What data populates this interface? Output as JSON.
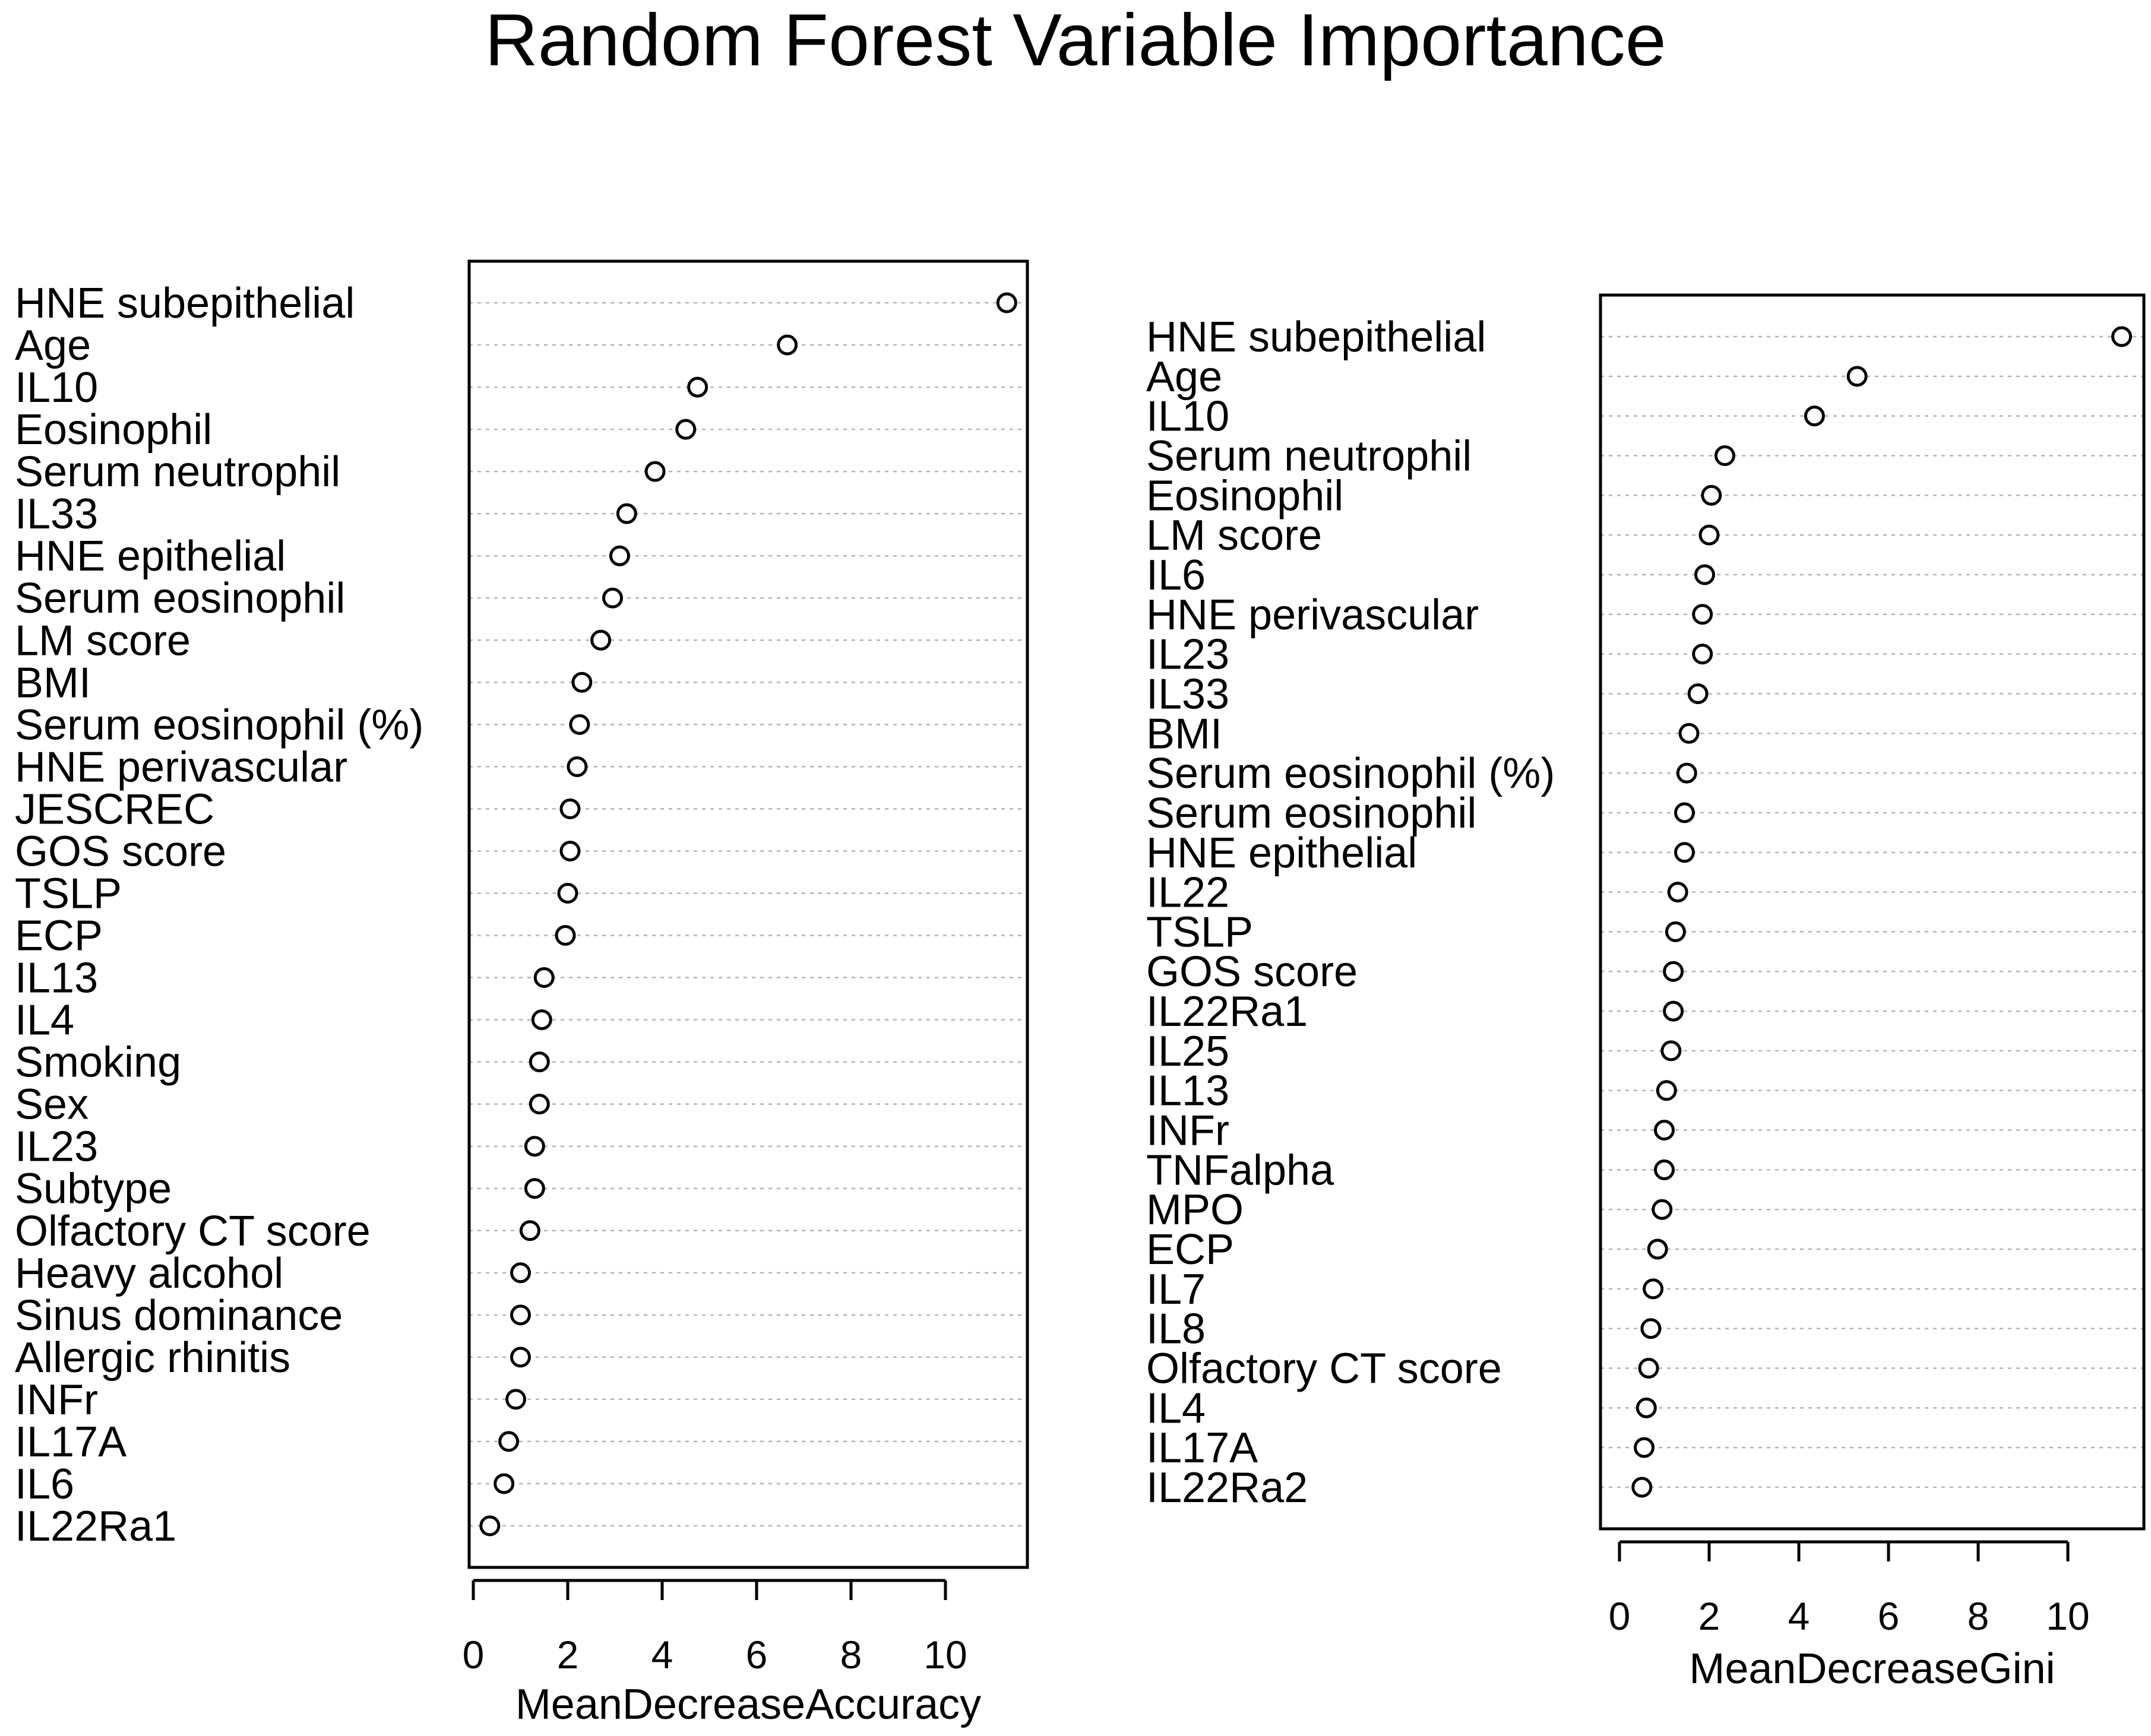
{
  "title": "Random Forest Variable Importance",
  "chart_data": [
    {
      "type": "scatter",
      "xlabel": "MeanDecreaseAccuracy",
      "xlim": [
        0,
        12
      ],
      "xticks": [
        0,
        2,
        4,
        6,
        8,
        10
      ],
      "grid": true,
      "categories": [
        "HNE subepithelial",
        "Age",
        "IL10",
        "Eosinophil",
        "Serum neutrophil",
        "IL33",
        "HNE epithelial",
        "Serum eosinophil",
        "LM score",
        "BMI",
        "Serum eosinophil (%)",
        "HNE perivascular",
        "JESCREC",
        "GOS score",
        "TSLP",
        "ECP",
        "IL13",
        "IL4",
        "Smoking",
        "Sex",
        "IL23",
        "Subtype",
        "Olfactory CT score",
        "Heavy alcohol",
        "Sinus dominance",
        "Allergic rhinitis",
        "INFr",
        "IL17A",
        "IL6",
        "IL22Ra1"
      ],
      "values": [
        11.3,
        6.65,
        4.75,
        4.5,
        3.85,
        3.25,
        3.1,
        2.95,
        2.7,
        2.3,
        2.25,
        2.2,
        2.05,
        2.05,
        2.0,
        1.95,
        1.5,
        1.45,
        1.4,
        1.4,
        1.3,
        1.3,
        1.2,
        1.0,
        1.0,
        1.0,
        0.9,
        0.75,
        0.65,
        0.35
      ]
    },
    {
      "type": "scatter",
      "xlabel": "MeanDecreaseGini",
      "xlim": [
        0,
        12
      ],
      "xticks": [
        0,
        2,
        4,
        6,
        8,
        10
      ],
      "grid": true,
      "categories": [
        "HNE subepithelial",
        "Age",
        "IL10",
        "Serum neutrophil",
        "Eosinophil",
        "LM score",
        "IL6",
        "HNE perivascular",
        "IL23",
        "IL33",
        "BMI",
        "Serum eosinophil (%)",
        "Serum eosinophil",
        "HNE epithelial",
        "IL22",
        "TSLP",
        "GOS score",
        "IL22Ra1",
        "IL25",
        "IL13",
        "INFr",
        "TNFalpha",
        "MPO",
        "ECP",
        "IL7",
        "IL8",
        "Olfactory CT score",
        "IL4",
        "IL17A",
        "IL22Ra2"
      ],
      "values": [
        11.2,
        5.3,
        4.35,
        2.35,
        2.05,
        2.0,
        1.9,
        1.85,
        1.85,
        1.75,
        1.55,
        1.5,
        1.45,
        1.45,
        1.3,
        1.25,
        1.2,
        1.2,
        1.15,
        1.05,
        1.0,
        1.0,
        0.95,
        0.85,
        0.75,
        0.7,
        0.65,
        0.6,
        0.55,
        0.5
      ]
    }
  ]
}
